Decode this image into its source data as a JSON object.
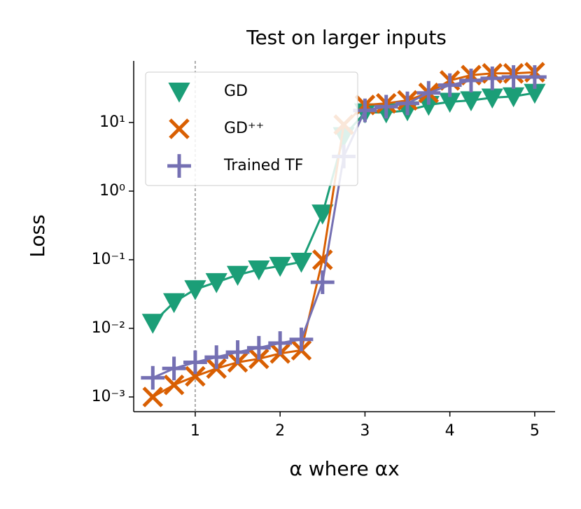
{
  "chart_data": {
    "type": "line",
    "title": "Test on larger inputs",
    "x_label": "α   where αx",
    "y_label": "Loss",
    "x": [
      0.5,
      0.75,
      1.0,
      1.25,
      1.5,
      1.75,
      2.0,
      2.25,
      2.5,
      2.75,
      3.0,
      3.25,
      3.5,
      3.75,
      4.0,
      4.25,
      4.5,
      4.75,
      5.0
    ],
    "series": [
      {
        "name": "GD",
        "color": "#1b9e77",
        "marker": "triangle-down",
        "values": [
          0.012,
          0.024,
          0.037,
          0.047,
          0.06,
          0.072,
          0.081,
          0.093,
          0.47,
          6.3,
          14,
          14,
          15,
          18,
          20,
          21,
          23,
          24,
          27
        ]
      },
      {
        "name": "GD⁺⁺",
        "color": "#d95f02",
        "marker": "x",
        "values": [
          0.001,
          0.0015,
          0.002,
          0.0026,
          0.0032,
          0.0036,
          0.0043,
          0.0048,
          0.1,
          9.3,
          18,
          19,
          21,
          27,
          41,
          49,
          52,
          52,
          54
        ]
      },
      {
        "name": "Trained TF",
        "color": "#7570b3",
        "marker": "plus",
        "values": [
          0.0019,
          0.0026,
          0.0032,
          0.0038,
          0.0045,
          0.0052,
          0.0061,
          0.0069,
          0.047,
          3.2,
          15,
          17,
          19,
          27,
          35,
          41,
          44,
          46,
          46
        ]
      }
    ],
    "xlim": [
      0.275,
      5.24
    ],
    "xticks": [
      1,
      2,
      3,
      4,
      5
    ],
    "ylim": [
      0.00061,
      79
    ],
    "log_y": true,
    "yticks": [
      {
        "value": 0.001,
        "label": "10⁻³"
      },
      {
        "value": 0.01,
        "label": "10⁻²"
      },
      {
        "value": 0.1,
        "label": "10⁻¹"
      },
      {
        "value": 1,
        "label": "10⁰"
      },
      {
        "value": 10,
        "label": "10¹"
      }
    ],
    "reference_line_x": 1,
    "legend": "upper left",
    "grid": false
  }
}
